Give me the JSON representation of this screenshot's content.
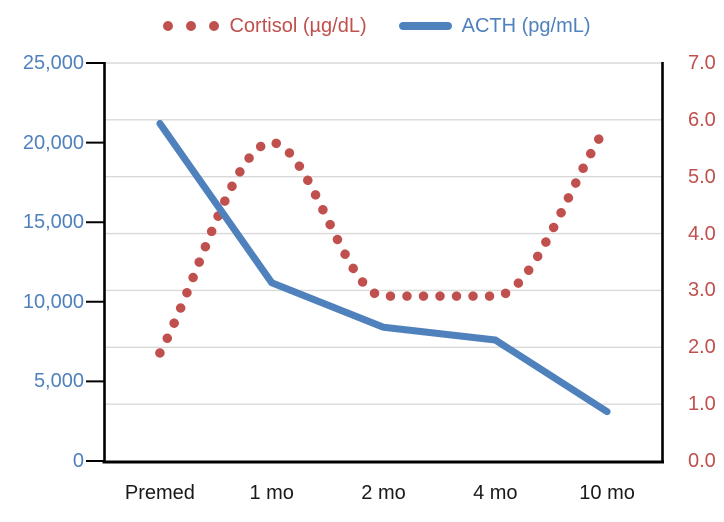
{
  "chart_data": {
    "type": "line",
    "title": "",
    "categories": [
      "Premed",
      "1 mo",
      "2 mo",
      "4 mo",
      "10 mo"
    ],
    "series": [
      {
        "name": "Cortisol (µg/dL)",
        "color": "#C0504D",
        "style": "dotted",
        "axis": "right",
        "values": [
          1.9,
          5.6,
          2.9,
          2.9,
          5.9
        ]
      },
      {
        "name": "ACTH (pg/mL)",
        "color": "#4F81BD",
        "style": "solid",
        "axis": "left",
        "values": [
          21200,
          11200,
          8400,
          7600,
          3100
        ]
      }
    ],
    "left_axis": {
      "min": 0,
      "max": 25000,
      "tick_values": [
        25000,
        20000,
        15000,
        10000,
        5000,
        0
      ],
      "tick_labels": [
        "25,000",
        "20,000",
        "15,000",
        "10,000",
        "5,000",
        "0"
      ],
      "text_color": "#4F81BD"
    },
    "right_axis": {
      "min": 0,
      "max": 7,
      "tick_values": [
        7,
        6,
        5,
        4,
        3,
        2,
        1,
        0
      ],
      "tick_labels": [
        "7.0",
        "6.0",
        "5.0",
        "4.0",
        "3.0",
        "2.0",
        "1.0",
        "0.0"
      ],
      "text_color": "#C0504D"
    },
    "x_axis": {
      "text_color": "#1a1a1a"
    },
    "grid": true,
    "gridline_color": "#D9D9D9",
    "axis_line_color": "#000000",
    "legend_position": "top"
  }
}
